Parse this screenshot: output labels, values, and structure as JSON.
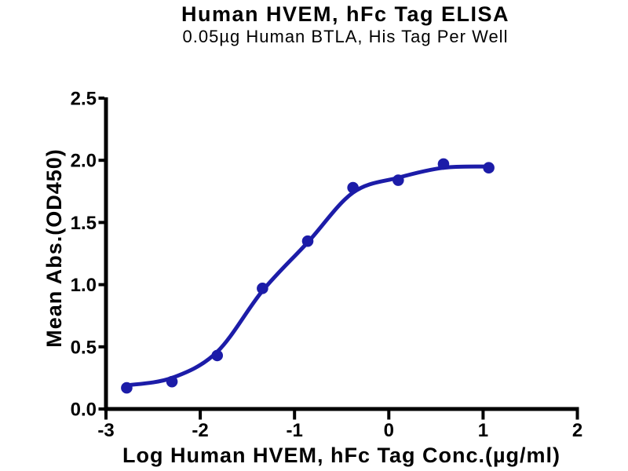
{
  "chart_data": {
    "type": "scatter",
    "title": "Human HVEM, hFc Tag ELISA",
    "subtitle": "0.05µg Human BTLA, His Tag Per Well",
    "xlabel": "Log Human HVEM, hFc Tag Conc.(µg/ml)",
    "ylabel": "Mean Abs.(OD450)",
    "xlim": [
      -3,
      2
    ],
    "ylim": [
      0,
      2.5
    ],
    "x_ticks": [
      -3,
      -2,
      -1,
      0,
      1,
      2
    ],
    "x_tick_labels": [
      "-3",
      "-2",
      "-1",
      "0",
      "1",
      "2"
    ],
    "y_ticks": [
      0,
      0.5,
      1,
      1.5,
      2,
      2.5
    ],
    "y_tick_labels": [
      "0.0",
      "0.5",
      "1.0",
      "1.5",
      "2.0",
      "2.5"
    ],
    "grid": false,
    "legend_position": "none",
    "colors": {
      "series": "#1C1CA8",
      "axis": "#000000",
      "text": "#000000",
      "background": "#FFFFFF"
    },
    "points": [
      [
        -2.78,
        0.17
      ],
      [
        -2.3,
        0.22
      ],
      [
        -1.82,
        0.43
      ],
      [
        -1.34,
        0.97
      ],
      [
        -0.86,
        1.35
      ],
      [
        -0.38,
        1.78
      ],
      [
        0.1,
        1.84
      ],
      [
        0.58,
        1.97
      ],
      [
        1.06,
        1.94
      ]
    ],
    "fit_curve_points": [
      [
        -2.78,
        0.19
      ],
      [
        -2.3,
        0.25
      ],
      [
        -1.82,
        0.46
      ],
      [
        -1.34,
        0.95
      ],
      [
        -0.86,
        1.34
      ],
      [
        -0.38,
        1.74
      ],
      [
        0.1,
        1.86
      ],
      [
        0.58,
        1.94
      ],
      [
        1.06,
        1.95
      ]
    ]
  }
}
